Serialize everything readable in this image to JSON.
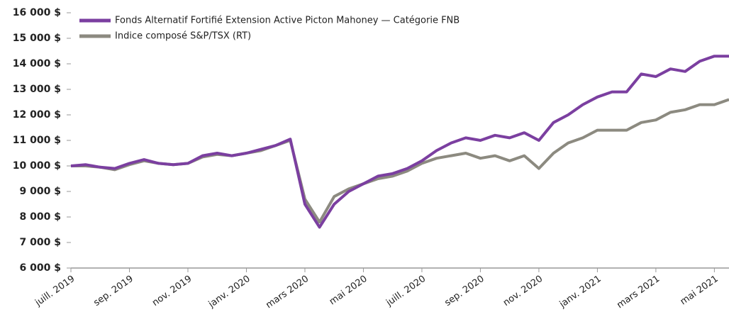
{
  "chart_data": {
    "type": "line",
    "categories": [
      "juill. 2019",
      null,
      null,
      null,
      "sep. 2019",
      null,
      null,
      null,
      "nov. 2019",
      null,
      null,
      null,
      "janv. 2020",
      null,
      null,
      null,
      "mars 2020",
      null,
      null,
      null,
      "mai 2020",
      null,
      null,
      null,
      "juill. 2020",
      null,
      null,
      null,
      "sep. 2020",
      null,
      null,
      null,
      "nov. 2020",
      null,
      null,
      null,
      "janv. 2021",
      null,
      null,
      null,
      "mars 2021",
      null,
      null,
      null,
      "mai 2021",
      null
    ],
    "series": [
      {
        "name": "Fonds Alternatif Fortifié Extension Active Picton Mahoney — Catégorie FNB",
        "color": "#7b3fa0",
        "values": [
          10000,
          10050,
          9950,
          9900,
          10100,
          10250,
          10100,
          10050,
          10100,
          10400,
          10500,
          10400,
          10500,
          10650,
          10800,
          11050,
          8500,
          7600,
          8500,
          9000,
          9300,
          9600,
          9700,
          9900,
          10200,
          10600,
          10900,
          11100,
          11000,
          11200,
          11100,
          11300,
          11000,
          11700,
          12000,
          12400,
          12700,
          12900,
          12900,
          13600,
          13500,
          13800,
          13700,
          14100,
          14300,
          14300
        ]
      },
      {
        "name": "Indice composé S&P/TSX (RT)",
        "color": "#8c8a80",
        "values": [
          10000,
          10000,
          9950,
          9850,
          10050,
          10200,
          10100,
          10050,
          10100,
          10350,
          10450,
          10400,
          10500,
          10600,
          10800,
          11000,
          8700,
          7800,
          8800,
          9100,
          9300,
          9500,
          9600,
          9800,
          10100,
          10300,
          10400,
          10500,
          10300,
          10400,
          10200,
          10400,
          9900,
          10500,
          10900,
          11100,
          11400,
          11400,
          11400,
          11700,
          11800,
          12100,
          12200,
          12400,
          12400,
          12600
        ]
      }
    ],
    "ylim": [
      6000,
      16000
    ],
    "yticks": [
      {
        "value": 6000,
        "label": "6 000 $"
      },
      {
        "value": 7000,
        "label": "7 000 $"
      },
      {
        "value": 8000,
        "label": "8 000 $"
      },
      {
        "value": 9000,
        "label": "9 000 $"
      },
      {
        "value": 10000,
        "label": "10 000 $"
      },
      {
        "value": 11000,
        "label": "11 000 $"
      },
      {
        "value": 12000,
        "label": "12 000 $"
      },
      {
        "value": 13000,
        "label": "13 000 $"
      },
      {
        "value": 14000,
        "label": "14 000 $"
      },
      {
        "value": 15000,
        "label": "15 000 $"
      },
      {
        "value": 16000,
        "label": "16 000 $"
      }
    ],
    "grid": false,
    "legend": "top-left"
  }
}
